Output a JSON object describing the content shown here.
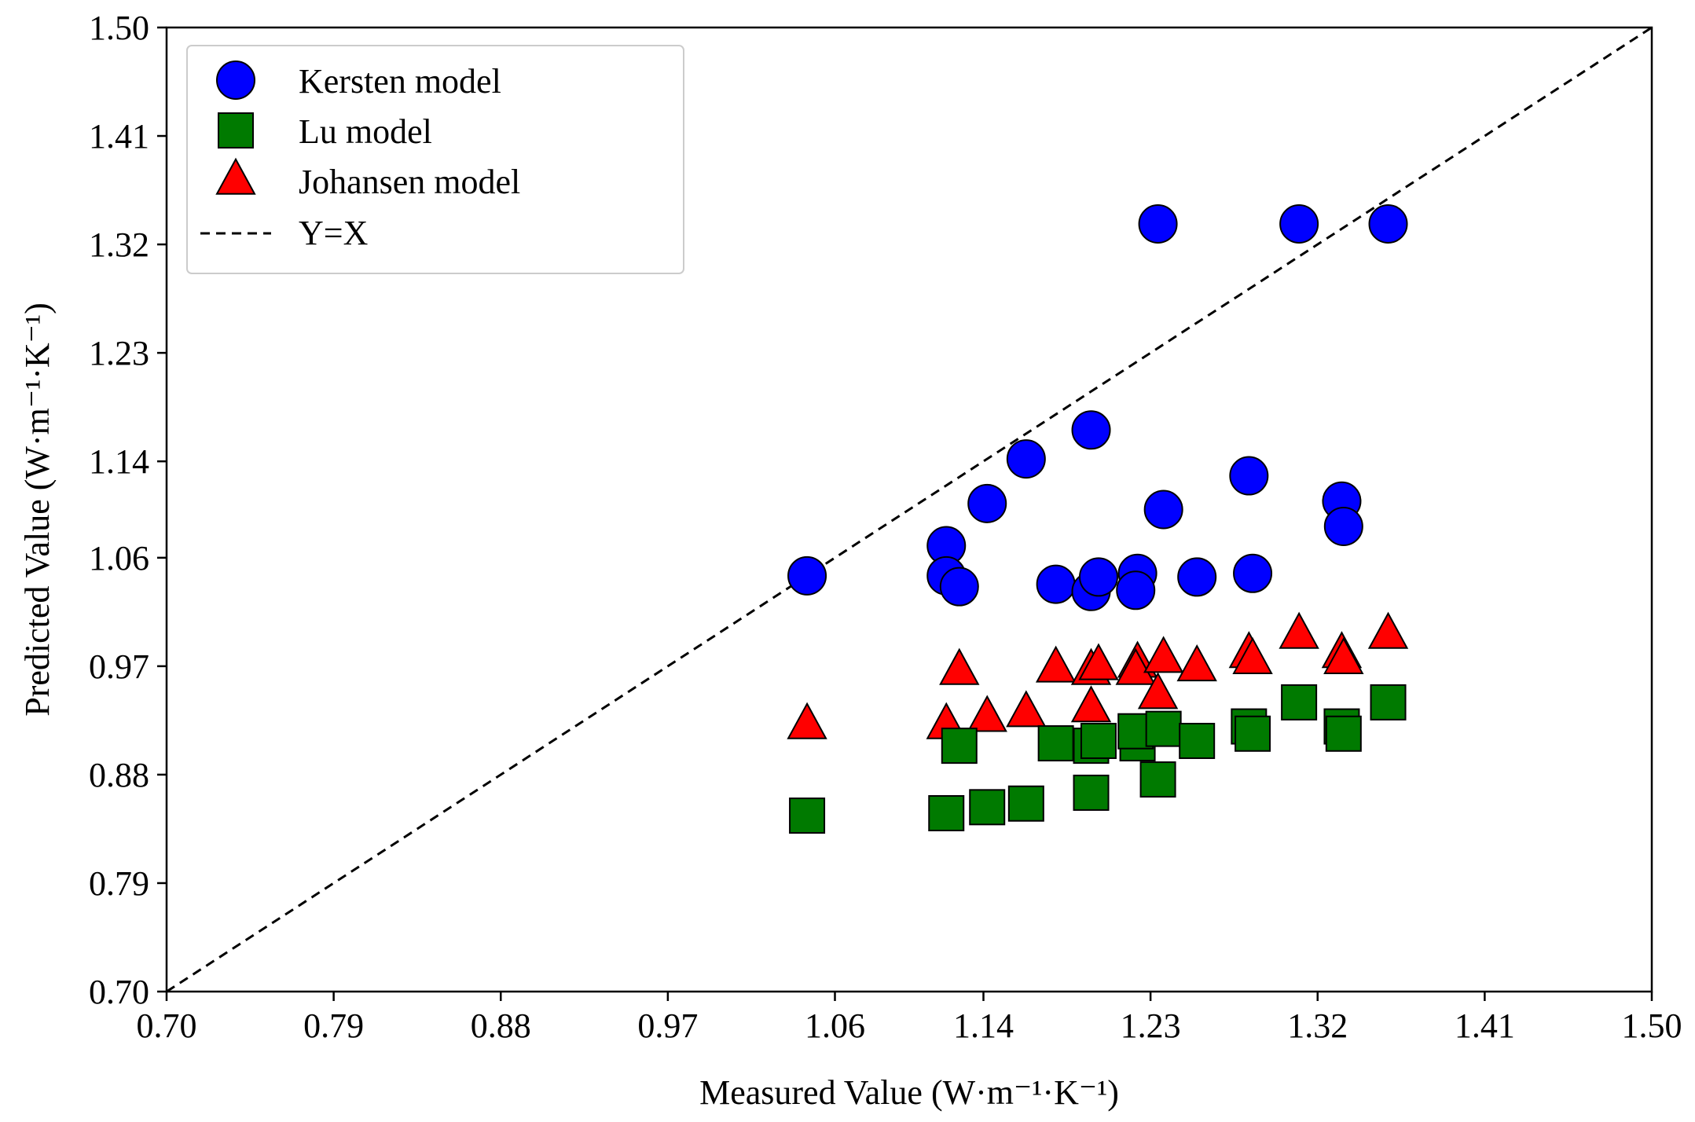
{
  "chart_data": {
    "type": "scatter",
    "title": "",
    "xlabel": "Measured Value (W·m⁻¹·K⁻¹)",
    "ylabel": "Predicted Value (W·m⁻¹·K⁻¹)",
    "xlim": [
      0.7,
      1.5
    ],
    "ylim": [
      0.7,
      1.5
    ],
    "xticks": [
      "0.70",
      "0.79",
      "0.88",
      "0.97",
      "1.06",
      "1.14",
      "1.23",
      "1.32",
      "1.41",
      "1.50"
    ],
    "yticks": [
      "0.70",
      "0.79",
      "0.88",
      "0.97",
      "1.06",
      "1.14",
      "1.23",
      "1.32",
      "1.41",
      "1.50"
    ],
    "legend_position": "top-left",
    "reference_line": {
      "name": "Y=X",
      "from": [
        0.7,
        0.7
      ],
      "to": [
        1.5,
        1.5
      ],
      "color": "#000000"
    },
    "series": [
      {
        "name": "Kersten model",
        "marker": "circle",
        "color": "#0000ff",
        "points": [
          [
            1.045,
            1.045
          ],
          [
            1.12,
            1.07
          ],
          [
            1.12,
            1.045
          ],
          [
            1.127,
            1.036
          ],
          [
            1.142,
            1.105
          ],
          [
            1.163,
            1.142
          ],
          [
            1.179,
            1.038
          ],
          [
            1.198,
            1.166
          ],
          [
            1.198,
            1.032
          ],
          [
            1.202,
            1.044
          ],
          [
            1.223,
            1.047
          ],
          [
            1.222,
            1.033
          ],
          [
            1.234,
            1.337
          ],
          [
            1.237,
            1.1
          ],
          [
            1.255,
            1.044
          ],
          [
            1.283,
            1.128
          ],
          [
            1.285,
            1.047
          ],
          [
            1.31,
            1.337
          ],
          [
            1.333,
            1.107
          ],
          [
            1.334,
            1.086
          ],
          [
            1.358,
            1.337
          ]
        ]
      },
      {
        "name": "Lu model",
        "marker": "square",
        "color": "#007a00",
        "points": [
          [
            1.045,
            0.846
          ],
          [
            1.12,
            0.848
          ],
          [
            1.127,
            0.904
          ],
          [
            1.142,
            0.853
          ],
          [
            1.163,
            0.856
          ],
          [
            1.179,
            0.906
          ],
          [
            1.198,
            0.865
          ],
          [
            1.198,
            0.904
          ],
          [
            1.202,
            0.908
          ],
          [
            1.223,
            0.906
          ],
          [
            1.222,
            0.916
          ],
          [
            1.234,
            0.876
          ],
          [
            1.237,
            0.918
          ],
          [
            1.255,
            0.908
          ],
          [
            1.283,
            0.92
          ],
          [
            1.285,
            0.914
          ],
          [
            1.31,
            0.94
          ],
          [
            1.333,
            0.92
          ],
          [
            1.334,
            0.914
          ],
          [
            1.358,
            0.94
          ]
        ]
      },
      {
        "name": "Johansen model",
        "marker": "triangle",
        "color": "#ff0000",
        "points": [
          [
            1.045,
            0.921
          ],
          [
            1.12,
            0.921
          ],
          [
            1.127,
            0.966
          ],
          [
            1.142,
            0.927
          ],
          [
            1.163,
            0.931
          ],
          [
            1.179,
            0.968
          ],
          [
            1.198,
            0.935
          ],
          [
            1.198,
            0.966
          ],
          [
            1.202,
            0.97
          ],
          [
            1.223,
            0.972
          ],
          [
            1.222,
            0.966
          ],
          [
            1.234,
            0.946
          ],
          [
            1.237,
            0.976
          ],
          [
            1.255,
            0.969
          ],
          [
            1.283,
            0.98
          ],
          [
            1.285,
            0.975
          ],
          [
            1.31,
            0.996
          ],
          [
            1.333,
            0.98
          ],
          [
            1.334,
            0.975
          ],
          [
            1.358,
            0.996
          ]
        ]
      }
    ]
  }
}
